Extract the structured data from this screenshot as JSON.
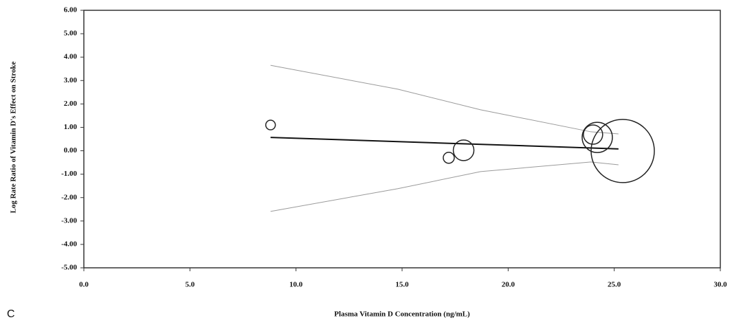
{
  "chart_data": {
    "type": "bubble",
    "xlabel": "Plasma Vitamin D Concentration (ng/mL)",
    "ylabel": "Log Rate Ratio of Vitamin D's Effect on Stroke",
    "panel_label": "C",
    "x": [
      8.8,
      17.2,
      17.9,
      24.0,
      24.2,
      25.4
    ],
    "values": [
      1.1,
      -0.3,
      0.02,
      0.69,
      0.57,
      -0.01
    ],
    "sizes": [
      49,
      64,
      225,
      196,
      484,
      2116
    ],
    "color": "#222222",
    "fit_line": {
      "x": [
        8.8,
        25.2
      ],
      "values": [
        0.57,
        0.08
      ],
      "color": "#111111"
    },
    "upper_band": {
      "x": [
        8.8,
        14.8,
        18.7,
        23.9,
        25.2
      ],
      "values": [
        3.65,
        2.63,
        1.75,
        0.81,
        0.72
      ],
      "color": "#999999"
    },
    "lower_band": {
      "x": [
        8.8,
        14.8,
        18.7,
        23.9,
        25.2
      ],
      "values": [
        -2.59,
        -1.62,
        -0.89,
        -0.48,
        -0.6
      ],
      "color": "#999999"
    },
    "xlim": [
      0,
      30
    ],
    "ylim": [
      -5,
      6
    ],
    "xticks": [
      {
        "value": 0,
        "label": "0.0"
      },
      {
        "value": 5,
        "label": "5.0"
      },
      {
        "value": 10,
        "label": "10.0"
      },
      {
        "value": 15,
        "label": "15.0"
      },
      {
        "value": 20,
        "label": "20.0"
      },
      {
        "value": 25,
        "label": "25.0"
      },
      {
        "value": 30,
        "label": "30.0"
      }
    ],
    "yticks": [
      {
        "value": 6,
        "label": "6.00"
      },
      {
        "value": 5,
        "label": "5.00"
      },
      {
        "value": 4,
        "label": "4.00"
      },
      {
        "value": 3,
        "label": "3.00"
      },
      {
        "value": 2,
        "label": "2.00"
      },
      {
        "value": 1,
        "label": "1.00"
      },
      {
        "value": 0,
        "label": "0.00"
      },
      {
        "value": -1,
        "label": "-1.00"
      },
      {
        "value": -2,
        "label": "-2.00"
      },
      {
        "value": -3,
        "label": "-3.00"
      },
      {
        "value": -4,
        "label": "-4.00"
      },
      {
        "value": -5,
        "label": "-5.00"
      }
    ]
  }
}
